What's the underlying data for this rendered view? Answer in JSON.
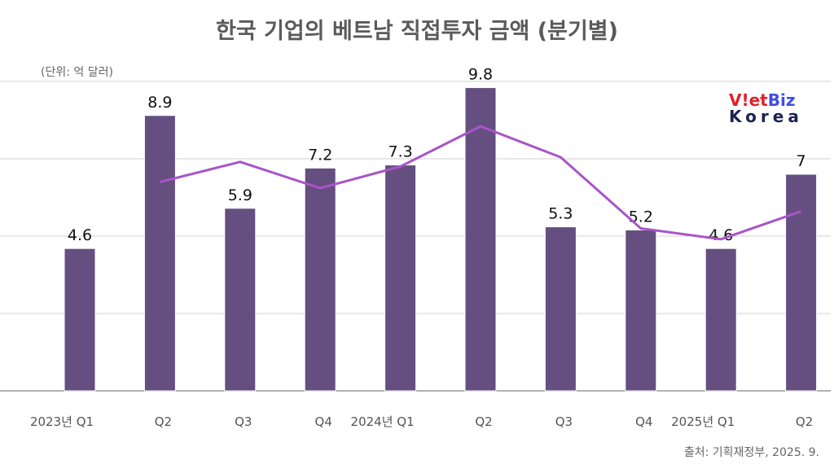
{
  "chart_data": {
    "type": "bar",
    "title": "한국 기업의 베트남 직접투자 금액 (분기별)",
    "unit_label": "(단위: 억 달러)",
    "source": "출처: 기획재정부, 2025. 9.",
    "categories": [
      "2023년 Q1",
      "Q2",
      "Q3",
      "Q4",
      "2024년 Q1",
      "Q2",
      "Q3",
      "Q4",
      "2025년 Q1",
      "Q2"
    ],
    "values": [
      4.6,
      8.9,
      5.9,
      7.2,
      7.3,
      9.8,
      5.3,
      5.2,
      4.6,
      7
    ],
    "value_labels": [
      "4.6",
      "8.9",
      "5.9",
      "7.2",
      "7.3",
      "9.8",
      "5.3",
      "5.2",
      "4.6",
      "7"
    ],
    "line_series": {
      "values": [
        null,
        6.75,
        7.4,
        6.55,
        7.25,
        8.55,
        7.55,
        5.25,
        4.9,
        5.8
      ]
    },
    "ylim": [
      0,
      10
    ],
    "gridlines": [
      2.5,
      5,
      7.5,
      10
    ],
    "grid": true,
    "y_tick_labels_shown": false,
    "colors": {
      "bar": "#654f80",
      "line": "#a855c8",
      "grid": "#d0d0d0"
    }
  },
  "logo": {
    "line1_red": "V!et",
    "line1_blue": "Biz",
    "line2": "Korea"
  }
}
